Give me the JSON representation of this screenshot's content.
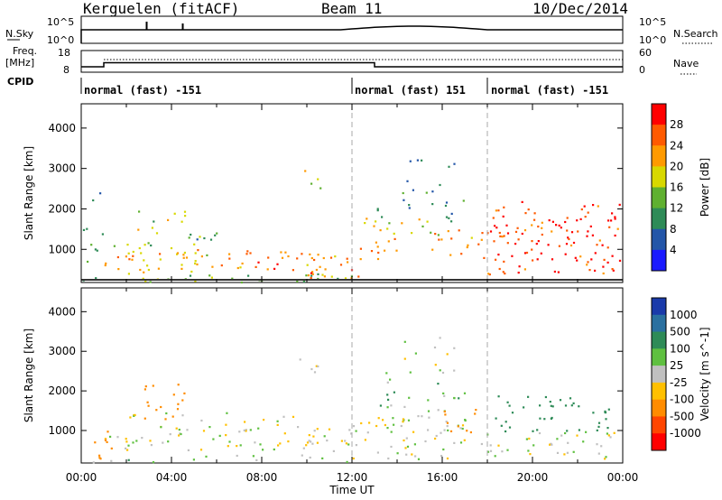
{
  "header": {
    "radar": "Kerguelen (fitACF)",
    "beam": "Beam 11",
    "date": "10/Dec/2014"
  },
  "panels": {
    "nsky_label": "N.Sky",
    "nsearch_label": "N.Search",
    "freq_label_1": "Freq.",
    "freq_label_2": "[MHz]",
    "nave_label": "Nave",
    "cpid_label": "CPID",
    "nsky_ticks": [
      "10^5",
      "10^0"
    ],
    "nsearch_ticks": [
      "10^5",
      "10^0"
    ],
    "freq_ticks": [
      "18",
      "8"
    ],
    "nave_ticks": [
      "60",
      "0"
    ]
  },
  "cpid_segments": [
    {
      "label": "normal (fast) -151",
      "start": 0,
      "end": 12
    },
    {
      "label": "normal (fast) 151",
      "start": 12,
      "end": 18
    },
    {
      "label": "normal (fast) -151",
      "start": 18,
      "end": 24
    }
  ],
  "chart_data": [
    {
      "type": "heatmap",
      "title": "Power",
      "xlabel": "",
      "ylabel": "Slant Range [km]",
      "xlim": [
        0,
        24
      ],
      "ylim": [
        180,
        4600
      ],
      "yticks": [
        1000,
        2000,
        3000,
        4000
      ],
      "colorbar": {
        "label": "Power [dB]",
        "ticks": [
          "4",
          "8",
          "12",
          "16",
          "20",
          "24",
          "28"
        ],
        "colors": [
          "#1a1aff",
          "#2356a8",
          "#2e8b57",
          "#5fb030",
          "#d8d800",
          "#ff9a00",
          "#ff5a00",
          "#ff0000"
        ]
      },
      "regions": [
        {
          "t0": 0.0,
          "t1": 12.0,
          "r0": 180,
          "r1": 450,
          "v": 14,
          "d": 0.5
        },
        {
          "t0": 1.0,
          "t1": 6.0,
          "r0": 450,
          "r1": 1150,
          "v": 20,
          "d": 0.7
        },
        {
          "t0": 6.0,
          "t1": 10.5,
          "r0": 500,
          "r1": 1000,
          "v": 24,
          "d": 0.75
        },
        {
          "t0": 2.0,
          "t1": 6.0,
          "r0": 1100,
          "r1": 1500,
          "v": 12,
          "d": 0.4
        },
        {
          "t0": 2.2,
          "t1": 4.6,
          "r0": 1400,
          "r1": 2100,
          "v": 16,
          "d": 0.35
        },
        {
          "t0": 10.0,
          "t1": 12.5,
          "r0": 300,
          "r1": 900,
          "v": 24,
          "d": 0.8
        },
        {
          "t0": 12.3,
          "t1": 14.0,
          "r0": 700,
          "r1": 1300,
          "v": 22,
          "d": 0.6
        },
        {
          "t0": 12.5,
          "t1": 16.0,
          "r0": 1300,
          "r1": 1800,
          "v": 20,
          "d": 0.55
        },
        {
          "t0": 13.0,
          "t1": 17.0,
          "r0": 1700,
          "r1": 2600,
          "v": 10,
          "d": 0.3
        },
        {
          "t0": 14.0,
          "t1": 16.5,
          "r0": 2600,
          "r1": 3300,
          "v": 8,
          "d": 0.25
        },
        {
          "t0": 9.5,
          "t1": 11.0,
          "r0": 2400,
          "r1": 3000,
          "v": 18,
          "d": 0.25
        },
        {
          "t0": 15.5,
          "t1": 18.0,
          "r0": 800,
          "r1": 1500,
          "v": 22,
          "d": 0.55
        },
        {
          "t0": 18.0,
          "t1": 24.0,
          "r0": 400,
          "r1": 2200,
          "v": 28,
          "d": 0.65
        },
        {
          "t0": 0.0,
          "t1": 1.0,
          "r0": 300,
          "r1": 1600,
          "v": 10,
          "d": 0.35
        },
        {
          "t0": 0.3,
          "t1": 1.2,
          "r0": 1900,
          "r1": 2800,
          "v": 8,
          "d": 0.15
        }
      ]
    },
    {
      "type": "heatmap",
      "title": "Velocity",
      "xlabel": "Time UT",
      "ylabel": "Slant Range [km]",
      "xlim": [
        0,
        24
      ],
      "ylim": [
        180,
        4600
      ],
      "yticks": [
        1000,
        2000,
        3000,
        4000
      ],
      "xticklabels": [
        "00:00",
        "04:00",
        "08:00",
        "12:00",
        "16:00",
        "20:00",
        "00:00"
      ],
      "colorbar": {
        "label": "Velocity [m s^-1]",
        "ticks": [
          "1000",
          "500",
          "100",
          "25",
          "-25",
          "-100",
          "-500",
          "-1000"
        ],
        "colors": [
          "#1a3aaa",
          "#2a70a0",
          "#2e8b57",
          "#5fc040",
          "#c0c0c0",
          "#ffc000",
          "#ff8c00",
          "#ff4500",
          "#ff0000"
        ]
      },
      "regions": [
        {
          "t0": 1.0,
          "t1": 12.5,
          "r0": 500,
          "r1": 1100,
          "v": 0,
          "d": 0.6
        },
        {
          "t0": 2.0,
          "t1": 10.0,
          "r0": 1100,
          "r1": 1500,
          "v": 0,
          "d": 0.35
        },
        {
          "t0": 2.5,
          "t1": 4.6,
          "r0": 1300,
          "r1": 2200,
          "v": -300,
          "d": 0.5
        },
        {
          "t0": 9.5,
          "t1": 11.0,
          "r0": 2400,
          "r1": 3000,
          "v": 0,
          "d": 0.35
        },
        {
          "t0": 12.0,
          "t1": 18.0,
          "r0": 300,
          "r1": 1400,
          "v": 0,
          "d": 0.55
        },
        {
          "t0": 13.0,
          "t1": 17.0,
          "r0": 1500,
          "r1": 2600,
          "v": 60,
          "d": 0.35
        },
        {
          "t0": 14.0,
          "t1": 16.5,
          "r0": 2600,
          "r1": 3400,
          "v": 0,
          "d": 0.25
        },
        {
          "t0": 16.0,
          "t1": 17.5,
          "r0": 900,
          "r1": 1600,
          "v": -300,
          "d": 0.5
        },
        {
          "t0": 18.2,
          "t1": 23.5,
          "r0": 1000,
          "r1": 1900,
          "v": 300,
          "d": 0.5
        },
        {
          "t0": 18.0,
          "t1": 24.0,
          "r0": 300,
          "r1": 1000,
          "v": 0,
          "d": 0.5
        },
        {
          "t0": 0.0,
          "t1": 1.5,
          "r0": 300,
          "r1": 1200,
          "v": -200,
          "d": 0.35
        },
        {
          "t0": 0.0,
          "t1": 12.0,
          "r0": 180,
          "r1": 400,
          "v": 50,
          "d": 0.3
        }
      ]
    }
  ]
}
